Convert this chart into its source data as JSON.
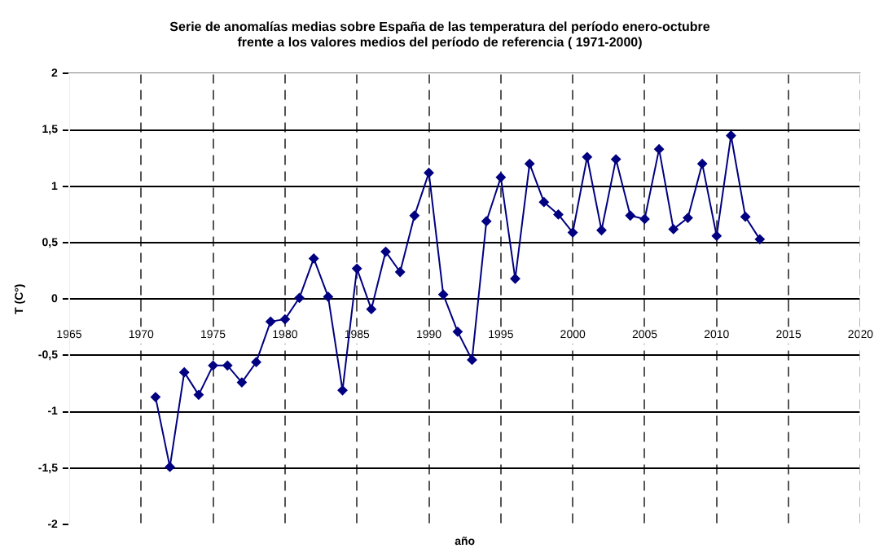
{
  "chart_data": {
    "type": "line",
    "title": "Serie de anomalías medias sobre España de las temperatura del período enero-octubre\nfrente a los valores medios del período de referencia ( 1971-2000)",
    "xlabel": "año",
    "ylabel": "T (C°)",
    "x": [
      1971,
      1972,
      1973,
      1974,
      1975,
      1976,
      1977,
      1978,
      1979,
      1980,
      1981,
      1982,
      1983,
      1984,
      1985,
      1986,
      1987,
      1988,
      1989,
      1990,
      1991,
      1992,
      1993,
      1994,
      1995,
      1996,
      1997,
      1998,
      1999,
      2000,
      2001,
      2002,
      2003,
      2004,
      2005,
      2006,
      2007,
      2008,
      2009,
      2010,
      2011,
      2012,
      2013
    ],
    "series": [
      {
        "color": "#000080",
        "values": [
          -0.87,
          -1.49,
          -0.65,
          -0.85,
          -0.59,
          -0.59,
          -0.74,
          -0.56,
          -0.2,
          -0.18,
          0.01,
          0.36,
          0.02,
          -0.81,
          0.27,
          -0.09,
          0.42,
          0.24,
          0.74,
          1.12,
          0.04,
          -0.29,
          -0.54,
          0.69,
          1.08,
          0.18,
          1.2,
          0.86,
          0.75,
          0.59,
          1.26,
          0.61,
          1.24,
          0.74,
          0.71,
          1.33,
          0.62,
          0.72,
          1.2,
          0.56,
          1.45,
          0.73,
          0.53
        ]
      }
    ],
    "xlim": [
      1965,
      2020
    ],
    "xticks": [
      1965,
      1970,
      1975,
      1980,
      1985,
      1990,
      1995,
      2000,
      2005,
      2010,
      2015,
      2020
    ],
    "ylim": [
      -2,
      2
    ],
    "yticks": [
      {
        "value": -2,
        "label": "-2"
      },
      {
        "value": -1.5,
        "label": "-1,5"
      },
      {
        "value": -1,
        "label": "-1"
      },
      {
        "value": -0.5,
        "label": "-0,5"
      },
      {
        "value": 0,
        "label": "0"
      },
      {
        "value": 0.5,
        "label": "0,5"
      },
      {
        "value": 1,
        "label": "1"
      },
      {
        "value": 1.5,
        "label": "1,5"
      },
      {
        "value": 2,
        "label": "2"
      }
    ],
    "grid": true,
    "legend": false,
    "marker": "diamond",
    "line_style": "solid"
  }
}
